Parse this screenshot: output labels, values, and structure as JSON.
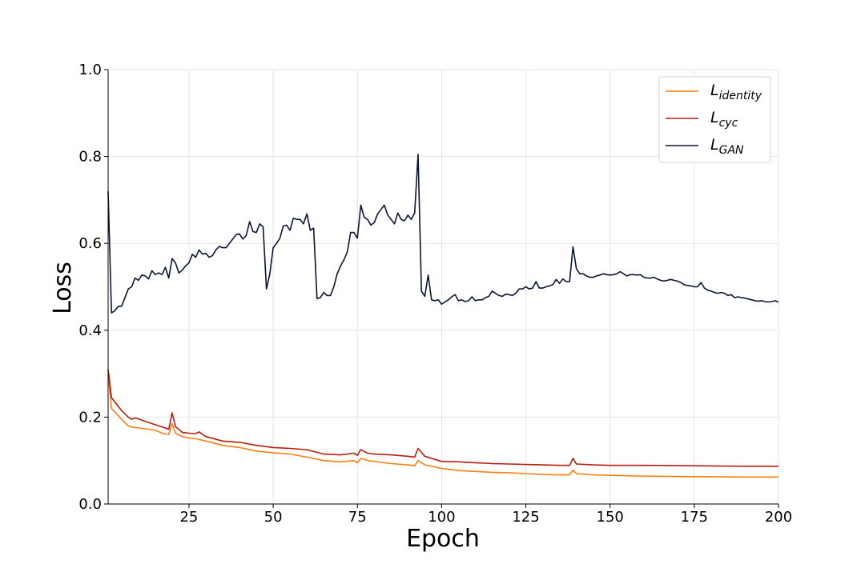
{
  "chart_data": {
    "type": "line",
    "title": "",
    "xlabel": "Epoch",
    "ylabel": "Loss",
    "xlim": [
      1,
      200
    ],
    "ylim": [
      0.0,
      1.0
    ],
    "x_ticks": [
      25,
      50,
      75,
      100,
      125,
      150,
      175,
      200
    ],
    "x_tick_labels": [
      "25",
      "50",
      "75",
      "100",
      "125",
      "150",
      "175",
      "200"
    ],
    "y_ticks": [
      0.0,
      0.2,
      0.4,
      0.6,
      0.8,
      1.0
    ],
    "y_tick_labels": [
      "0.0",
      "0.2",
      "0.4",
      "0.6",
      "0.8",
      "1.0"
    ],
    "grid": true,
    "legend_position": "top-right",
    "series": [
      {
        "key": "identity",
        "legend_base": "L",
        "legend_sub": "identity",
        "color": "#ff7f0e",
        "points": [
          [
            1,
            0.3
          ],
          [
            2,
            0.22
          ],
          [
            5,
            0.195
          ],
          [
            7,
            0.18
          ],
          [
            8,
            0.177
          ],
          [
            10,
            0.175
          ],
          [
            15,
            0.17
          ],
          [
            17,
            0.163
          ],
          [
            19,
            0.16
          ],
          [
            20,
            0.185
          ],
          [
            21,
            0.163
          ],
          [
            23,
            0.155
          ],
          [
            25,
            0.152
          ],
          [
            27,
            0.15
          ],
          [
            30,
            0.145
          ],
          [
            35,
            0.135
          ],
          [
            40,
            0.13
          ],
          [
            45,
            0.122
          ],
          [
            50,
            0.118
          ],
          [
            55,
            0.115
          ],
          [
            60,
            0.108
          ],
          [
            65,
            0.1
          ],
          [
            70,
            0.097
          ],
          [
            74,
            0.1
          ],
          [
            75,
            0.095
          ],
          [
            76,
            0.105
          ],
          [
            78,
            0.1
          ],
          [
            80,
            0.098
          ],
          [
            85,
            0.093
          ],
          [
            90,
            0.09
          ],
          [
            92,
            0.088
          ],
          [
            93,
            0.1
          ],
          [
            95,
            0.09
          ],
          [
            100,
            0.082
          ],
          [
            105,
            0.077
          ],
          [
            110,
            0.075
          ],
          [
            115,
            0.073
          ],
          [
            120,
            0.072
          ],
          [
            125,
            0.07
          ],
          [
            130,
            0.068
          ],
          [
            135,
            0.067
          ],
          [
            138,
            0.067
          ],
          [
            139,
            0.078
          ],
          [
            140,
            0.07
          ],
          [
            145,
            0.067
          ],
          [
            150,
            0.066
          ],
          [
            160,
            0.064
          ],
          [
            175,
            0.063
          ],
          [
            190,
            0.062
          ],
          [
            200,
            0.062
          ]
        ]
      },
      {
        "key": "cyc",
        "legend_base": "L",
        "legend_sub": "cyc",
        "color": "#b71c0c",
        "points": [
          [
            1,
            0.31
          ],
          [
            2,
            0.245
          ],
          [
            5,
            0.215
          ],
          [
            7,
            0.2
          ],
          [
            8,
            0.195
          ],
          [
            9,
            0.198
          ],
          [
            10,
            0.196
          ],
          [
            12,
            0.19
          ],
          [
            14,
            0.185
          ],
          [
            16,
            0.18
          ],
          [
            18,
            0.175
          ],
          [
            19,
            0.172
          ],
          [
            20,
            0.21
          ],
          [
            21,
            0.178
          ],
          [
            23,
            0.165
          ],
          [
            25,
            0.163
          ],
          [
            27,
            0.162
          ],
          [
            28,
            0.166
          ],
          [
            30,
            0.155
          ],
          [
            35,
            0.145
          ],
          [
            40,
            0.142
          ],
          [
            45,
            0.135
          ],
          [
            50,
            0.13
          ],
          [
            55,
            0.128
          ],
          [
            60,
            0.125
          ],
          [
            65,
            0.115
          ],
          [
            70,
            0.113
          ],
          [
            74,
            0.117
          ],
          [
            75,
            0.112
          ],
          [
            76,
            0.125
          ],
          [
            78,
            0.117
          ],
          [
            80,
            0.115
          ],
          [
            85,
            0.113
          ],
          [
            90,
            0.11
          ],
          [
            92,
            0.108
          ],
          [
            93,
            0.128
          ],
          [
            95,
            0.11
          ],
          [
            100,
            0.098
          ],
          [
            105,
            0.097
          ],
          [
            110,
            0.095
          ],
          [
            115,
            0.093
          ],
          [
            120,
            0.092
          ],
          [
            125,
            0.091
          ],
          [
            130,
            0.09
          ],
          [
            135,
            0.089
          ],
          [
            138,
            0.089
          ],
          [
            139,
            0.105
          ],
          [
            140,
            0.092
          ],
          [
            145,
            0.09
          ],
          [
            150,
            0.089
          ],
          [
            160,
            0.089
          ],
          [
            175,
            0.088
          ],
          [
            190,
            0.087
          ],
          [
            200,
            0.087
          ]
        ]
      },
      {
        "key": "gan",
        "legend_base": "L",
        "legend_sub": "GAN",
        "color": "#0c1533",
        "points": [
          [
            1,
            0.72
          ],
          [
            2,
            0.44
          ],
          [
            3,
            0.445
          ],
          [
            4,
            0.455
          ],
          [
            5,
            0.455
          ],
          [
            6,
            0.475
          ],
          [
            7,
            0.495
          ],
          [
            8,
            0.5
          ],
          [
            9,
            0.52
          ],
          [
            10,
            0.515
          ],
          [
            11,
            0.527
          ],
          [
            12,
            0.525
          ],
          [
            13,
            0.518
          ],
          [
            14,
            0.537
          ],
          [
            15,
            0.528
          ],
          [
            16,
            0.532
          ],
          [
            17,
            0.528
          ],
          [
            18,
            0.545
          ],
          [
            19,
            0.52
          ],
          [
            20,
            0.565
          ],
          [
            21,
            0.555
          ],
          [
            22,
            0.532
          ],
          [
            23,
            0.538
          ],
          [
            24,
            0.548
          ],
          [
            25,
            0.555
          ],
          [
            26,
            0.575
          ],
          [
            27,
            0.568
          ],
          [
            28,
            0.585
          ],
          [
            29,
            0.575
          ],
          [
            30,
            0.577
          ],
          [
            31,
            0.568
          ],
          [
            32,
            0.572
          ],
          [
            33,
            0.585
          ],
          [
            34,
            0.593
          ],
          [
            35,
            0.59
          ],
          [
            36,
            0.59
          ],
          [
            37,
            0.6
          ],
          [
            38,
            0.61
          ],
          [
            39,
            0.62
          ],
          [
            40,
            0.622
          ],
          [
            41,
            0.61
          ],
          [
            42,
            0.618
          ],
          [
            43,
            0.65
          ],
          [
            44,
            0.627
          ],
          [
            45,
            0.625
          ],
          [
            46,
            0.645
          ],
          [
            47,
            0.638
          ],
          [
            48,
            0.495
          ],
          [
            49,
            0.53
          ],
          [
            50,
            0.59
          ],
          [
            51,
            0.6
          ],
          [
            52,
            0.612
          ],
          [
            53,
            0.64
          ],
          [
            54,
            0.642
          ],
          [
            55,
            0.63
          ],
          [
            56,
            0.658
          ],
          [
            57,
            0.655
          ],
          [
            58,
            0.655
          ],
          [
            59,
            0.645
          ],
          [
            60,
            0.668
          ],
          [
            61,
            0.63
          ],
          [
            62,
            0.635
          ],
          [
            63,
            0.473
          ],
          [
            64,
            0.475
          ],
          [
            65,
            0.487
          ],
          [
            66,
            0.48
          ],
          [
            67,
            0.48
          ],
          [
            68,
            0.5
          ],
          [
            69,
            0.53
          ],
          [
            70,
            0.548
          ],
          [
            71,
            0.562
          ],
          [
            72,
            0.58
          ],
          [
            73,
            0.625
          ],
          [
            74,
            0.625
          ],
          [
            75,
            0.612
          ],
          [
            76,
            0.688
          ],
          [
            77,
            0.66
          ],
          [
            78,
            0.655
          ],
          [
            79,
            0.642
          ],
          [
            80,
            0.648
          ],
          [
            81,
            0.668
          ],
          [
            82,
            0.678
          ],
          [
            83,
            0.688
          ],
          [
            84,
            0.665
          ],
          [
            85,
            0.655
          ],
          [
            86,
            0.645
          ],
          [
            87,
            0.67
          ],
          [
            88,
            0.655
          ],
          [
            89,
            0.652
          ],
          [
            90,
            0.665
          ],
          [
            91,
            0.655
          ],
          [
            92,
            0.67
          ],
          [
            93,
            0.805
          ],
          [
            94,
            0.49
          ],
          [
            95,
            0.478
          ],
          [
            96,
            0.527
          ],
          [
            97,
            0.47
          ],
          [
            98,
            0.468
          ],
          [
            99,
            0.47
          ],
          [
            100,
            0.46
          ],
          [
            101,
            0.465
          ],
          [
            102,
            0.47
          ],
          [
            103,
            0.477
          ],
          [
            104,
            0.482
          ],
          [
            105,
            0.468
          ],
          [
            106,
            0.47
          ],
          [
            107,
            0.466
          ],
          [
            108,
            0.468
          ],
          [
            109,
            0.477
          ],
          [
            110,
            0.468
          ],
          [
            111,
            0.47
          ],
          [
            112,
            0.47
          ],
          [
            113,
            0.475
          ],
          [
            114,
            0.478
          ],
          [
            115,
            0.49
          ],
          [
            116,
            0.485
          ],
          [
            117,
            0.48
          ],
          [
            118,
            0.478
          ],
          [
            119,
            0.483
          ],
          [
            120,
            0.482
          ],
          [
            121,
            0.48
          ],
          [
            122,
            0.485
          ],
          [
            123,
            0.495
          ],
          [
            124,
            0.495
          ],
          [
            125,
            0.5
          ],
          [
            126,
            0.495
          ],
          [
            127,
            0.497
          ],
          [
            128,
            0.512
          ],
          [
            129,
            0.497
          ],
          [
            130,
            0.497
          ],
          [
            131,
            0.5
          ],
          [
            132,
            0.502
          ],
          [
            133,
            0.505
          ],
          [
            134,
            0.517
          ],
          [
            135,
            0.508
          ],
          [
            136,
            0.518
          ],
          [
            137,
            0.512
          ],
          [
            138,
            0.512
          ],
          [
            139,
            0.592
          ],
          [
            140,
            0.542
          ],
          [
            141,
            0.53
          ],
          [
            142,
            0.53
          ],
          [
            143,
            0.525
          ],
          [
            144,
            0.522
          ],
          [
            145,
            0.522
          ],
          [
            146,
            0.525
          ],
          [
            147,
            0.527
          ],
          [
            148,
            0.53
          ],
          [
            149,
            0.528
          ],
          [
            150,
            0.527
          ],
          [
            151,
            0.528
          ],
          [
            152,
            0.53
          ],
          [
            153,
            0.535
          ],
          [
            154,
            0.53
          ],
          [
            155,
            0.525
          ],
          [
            156,
            0.528
          ],
          [
            157,
            0.528
          ],
          [
            158,
            0.527
          ],
          [
            159,
            0.528
          ],
          [
            160,
            0.522
          ],
          [
            161,
            0.52
          ],
          [
            162,
            0.52
          ],
          [
            163,
            0.522
          ],
          [
            164,
            0.518
          ],
          [
            165,
            0.515
          ],
          [
            166,
            0.513
          ],
          [
            167,
            0.515
          ],
          [
            168,
            0.517
          ],
          [
            169,
            0.515
          ],
          [
            170,
            0.513
          ],
          [
            171,
            0.51
          ],
          [
            172,
            0.505
          ],
          [
            173,
            0.503
          ],
          [
            174,
            0.502
          ],
          [
            175,
            0.5
          ],
          [
            176,
            0.5
          ],
          [
            177,
            0.51
          ],
          [
            178,
            0.497
          ],
          [
            179,
            0.492
          ],
          [
            180,
            0.49
          ],
          [
            181,
            0.487
          ],
          [
            182,
            0.485
          ],
          [
            183,
            0.487
          ],
          [
            184,
            0.485
          ],
          [
            185,
            0.48
          ],
          [
            186,
            0.482
          ],
          [
            187,
            0.475
          ],
          [
            188,
            0.477
          ],
          [
            189,
            0.475
          ],
          [
            190,
            0.474
          ],
          [
            191,
            0.472
          ],
          [
            192,
            0.47
          ],
          [
            193,
            0.468
          ],
          [
            194,
            0.467
          ],
          [
            195,
            0.468
          ],
          [
            196,
            0.466
          ],
          [
            197,
            0.465
          ],
          [
            198,
            0.466
          ],
          [
            199,
            0.468
          ],
          [
            200,
            0.465
          ]
        ]
      }
    ]
  }
}
